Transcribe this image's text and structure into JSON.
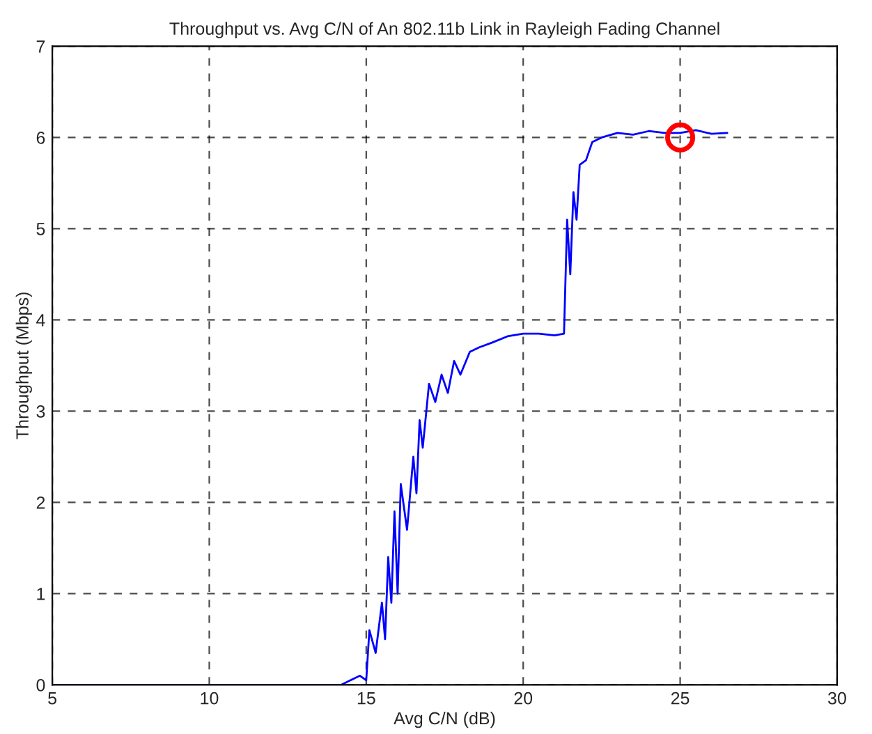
{
  "chart_data": {
    "type": "line",
    "title": "Throughput vs. Avg C/N of An 802.11b Link in Rayleigh Fading Channel",
    "xlabel": "Avg C/N (dB)",
    "ylabel": "Throughput (Mbps)",
    "series": [
      {
        "color": "#0000ff",
        "x": [
          5,
          10,
          14,
          14.2,
          14.5,
          14.8,
          15.0,
          15.1,
          15.3,
          15.5,
          15.6,
          15.7,
          15.8,
          15.9,
          16.0,
          16.1,
          16.3,
          16.5,
          16.6,
          16.7,
          16.8,
          17.0,
          17.2,
          17.4,
          17.6,
          17.8,
          18.0,
          18.3,
          18.6,
          19.0,
          19.5,
          20.0,
          20.5,
          21.0,
          21.3,
          21.4,
          21.5,
          21.6,
          21.7,
          21.8,
          22.0,
          22.2,
          22.5,
          23.0,
          23.5,
          24.0,
          24.5,
          25.0,
          25.5,
          26.0,
          26.5
        ],
        "values": [
          0,
          0,
          0,
          0,
          0.05,
          0.1,
          0.05,
          0.6,
          0.35,
          0.9,
          0.5,
          1.4,
          0.9,
          1.9,
          1.0,
          2.2,
          1.7,
          2.5,
          2.1,
          2.9,
          2.6,
          3.3,
          3.1,
          3.4,
          3.2,
          3.55,
          3.4,
          3.65,
          3.7,
          3.75,
          3.82,
          3.85,
          3.85,
          3.83,
          3.85,
          5.1,
          4.5,
          5.4,
          5.1,
          5.7,
          5.75,
          5.95,
          6.0,
          6.05,
          6.03,
          6.07,
          6.05,
          6.05,
          6.08,
          6.04,
          6.05
        ]
      },
      {
        "type": "scatter",
        "marker": "circle",
        "color": "#ff0000",
        "x": [
          25
        ],
        "values": [
          6.0
        ]
      }
    ],
    "xlim": [
      5,
      30
    ],
    "xticks": [
      5,
      10,
      15,
      20,
      25,
      30
    ],
    "ylim": [
      0,
      7
    ],
    "yticks": [
      0,
      1,
      2,
      3,
      4,
      5,
      6,
      7
    ],
    "grid": true,
    "line_style": "solid"
  }
}
